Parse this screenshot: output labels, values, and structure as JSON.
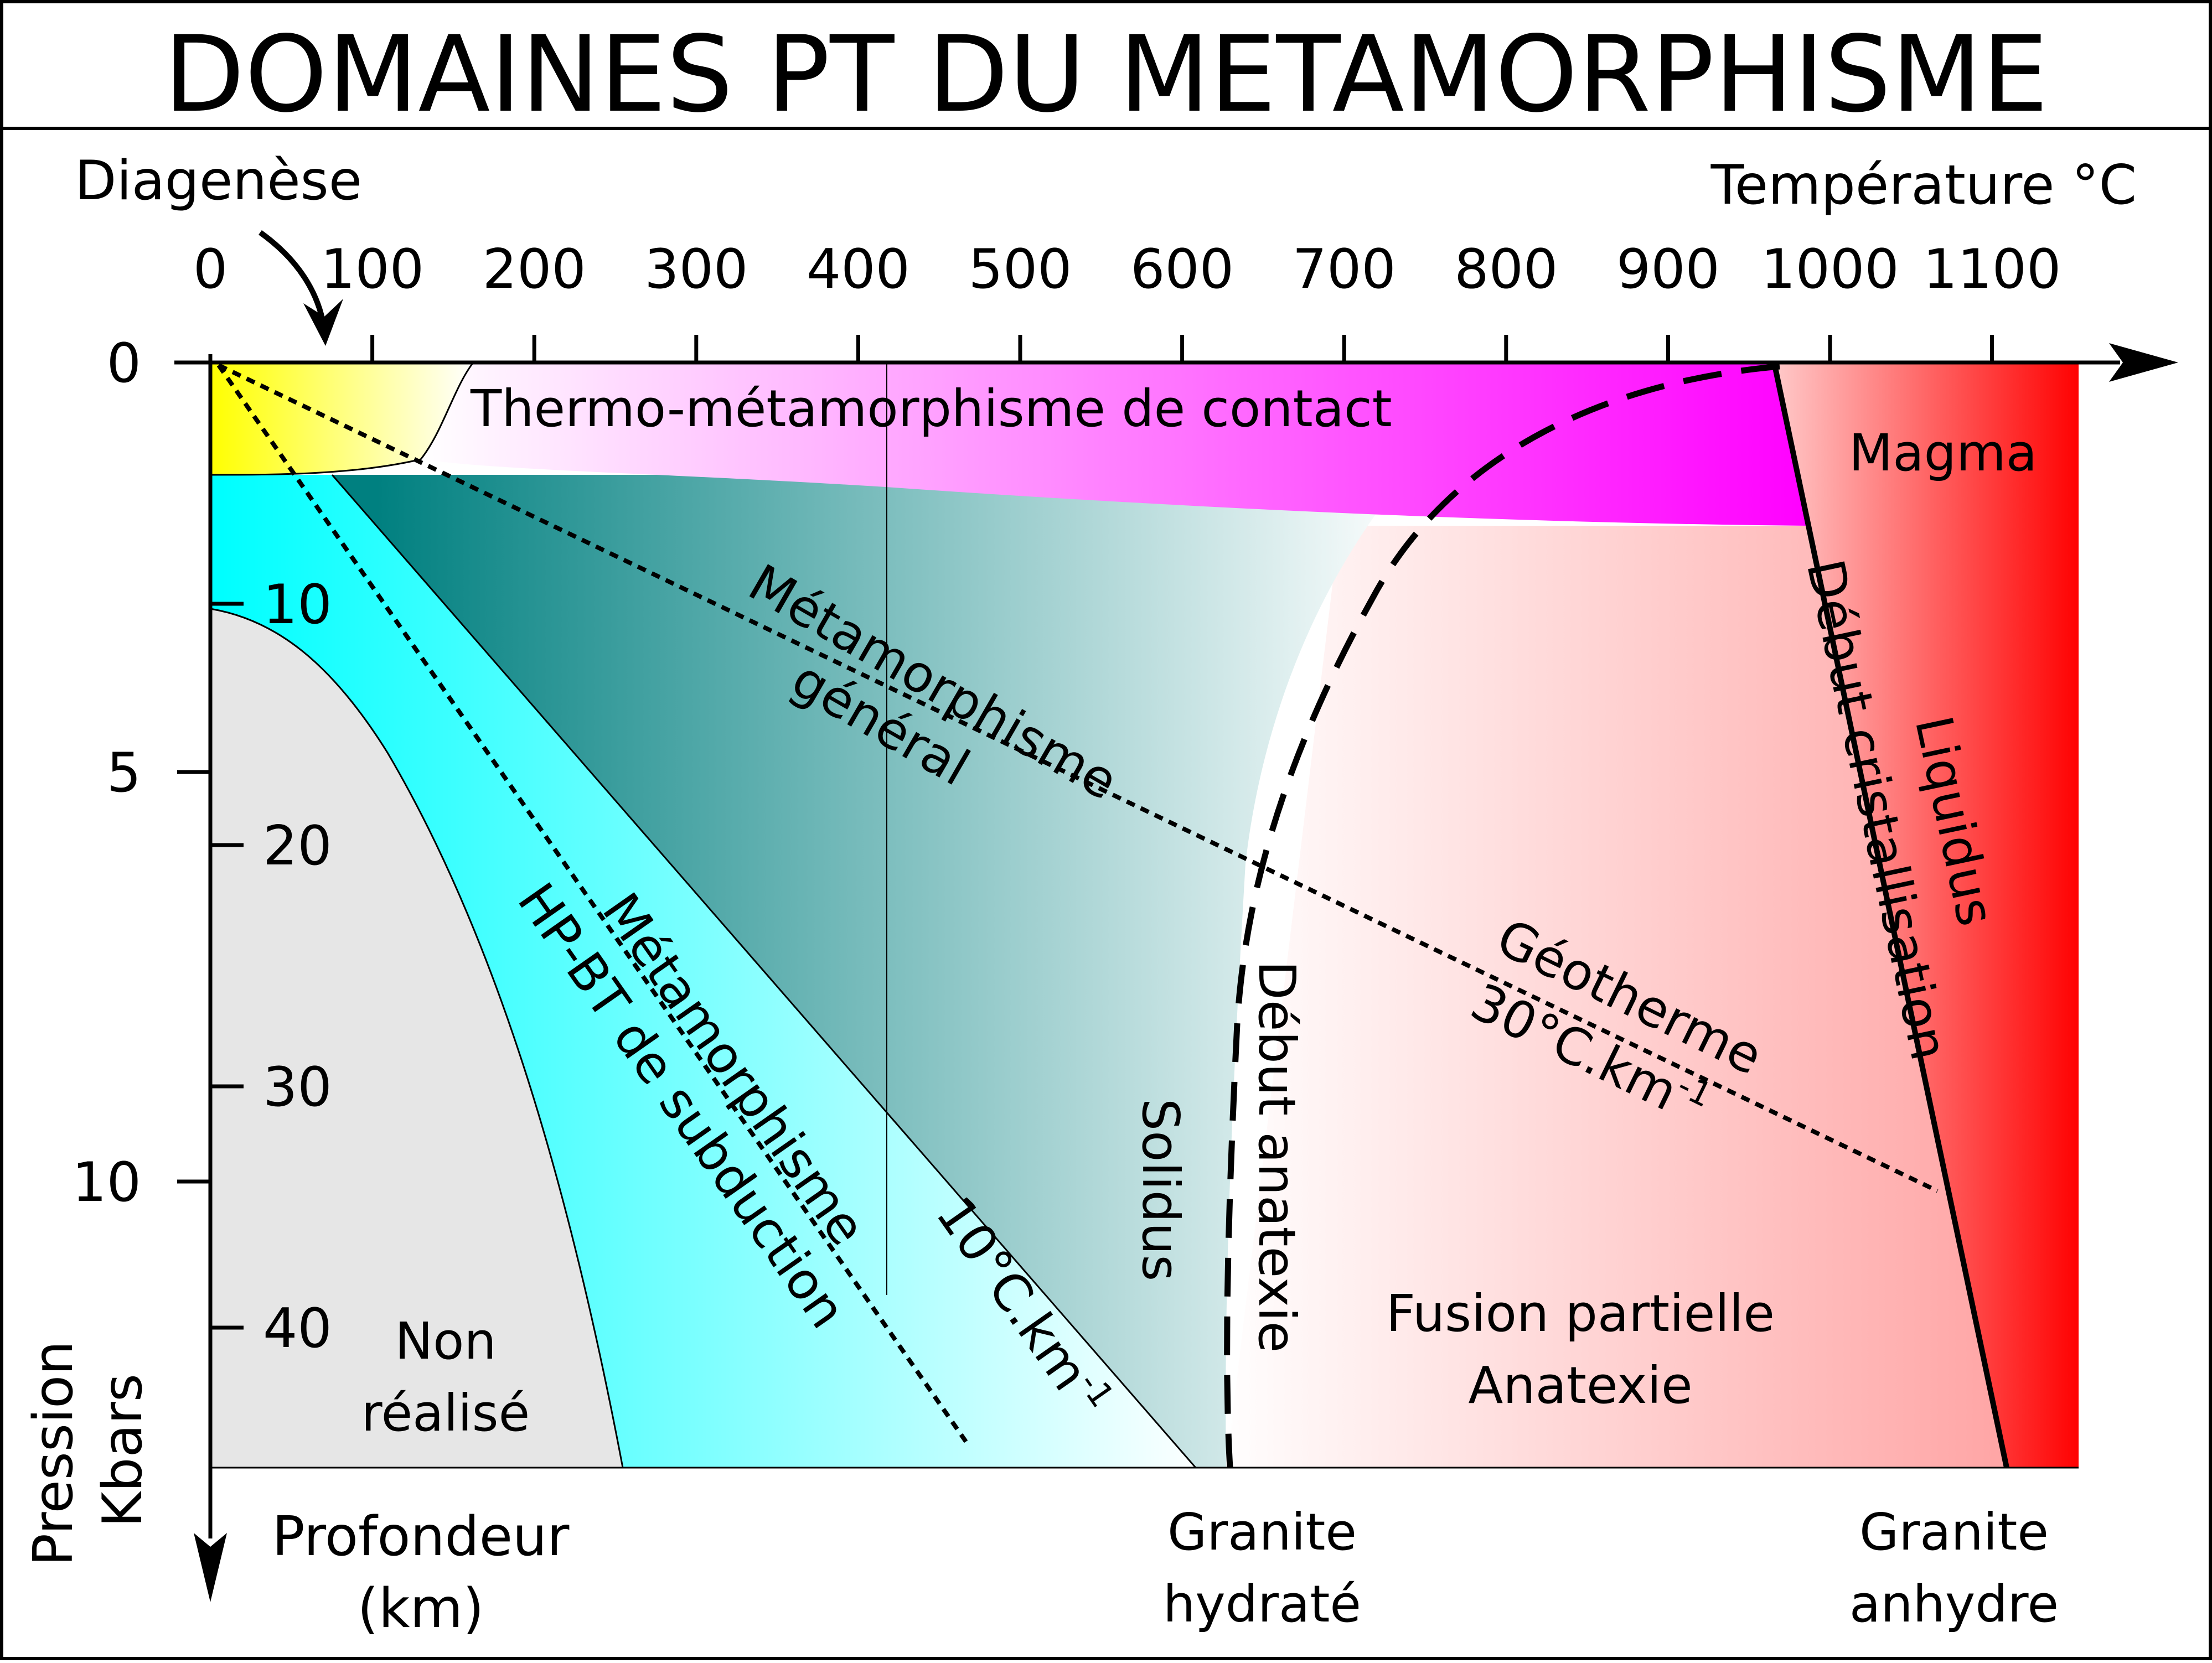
{
  "title": "DOMAINES PT DU METAMORPHISME",
  "axes": {
    "temperature_label": "Température °C",
    "temperature_ticks": [
      "0",
      "100",
      "200",
      "300",
      "400",
      "500",
      "600",
      "700",
      "800",
      "900",
      "1000",
      "1100"
    ],
    "pressure_label": "Pression",
    "pressure_unit": "Kbars",
    "pressure_ticks": [
      "0",
      "5",
      "10"
    ],
    "depth_label": "Profondeur",
    "depth_unit": "(km)",
    "depth_ticks": [
      "10",
      "20",
      "30",
      "40"
    ]
  },
  "labels": {
    "diagenese": "Diagenèse",
    "contact": "Thermo-métamorphisme de contact",
    "magma": "Magma",
    "general_1": "Métamorphisme",
    "general_2": "général",
    "hpbt_1": "Métamorphisme",
    "hpbt_2": "HP-BT de subduction",
    "gradient_10": "10°C.km",
    "gradient_10_exp": "-1",
    "geotherme": "Géotherme",
    "gradient_30": "30°C.km",
    "gradient_30_exp": "-1",
    "non_realise_1": "Non",
    "non_realise_2": "réalisé",
    "solidus": "Solidus",
    "debut_anatexie": "Début anatexie",
    "fusion_1": "Fusion partielle",
    "fusion_2": "Anatexie",
    "debut_cristallisation": "Début cristallisation",
    "liquidus": "Liquidus",
    "granite_hydrate_1": "Granite",
    "granite_hydrate_2": "hydraté",
    "granite_anhydre_1": "Granite",
    "granite_anhydre_2": "anhydre"
  },
  "colors": {
    "diagenese": "#ffff00",
    "contact": "#ff00ff",
    "magma": "#ff0000",
    "general": "#008080",
    "hpbt": "#00ffff",
    "non_realise": "#e6e6e6",
    "fusion": "#ffcccc"
  }
}
